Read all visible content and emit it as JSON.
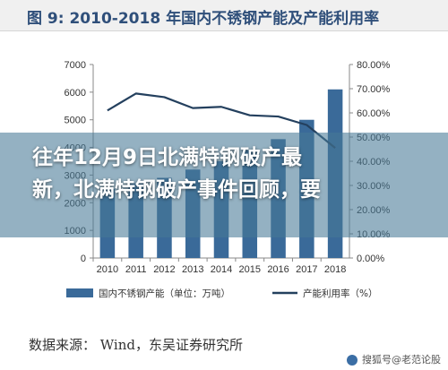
{
  "figure_title": "图 9:  2010-2018 年国内不锈钢产能及产能利用率",
  "chart_data": {
    "type": "bar",
    "categories": [
      "2010",
      "2011",
      "2012",
      "2013",
      "2014",
      "2015",
      "2016",
      "2017",
      "2018"
    ],
    "series": [
      {
        "name": "国内不锈钢产能（单位：万吨）",
        "kind": "bar",
        "axis": "left",
        "values": [
          2500,
          2700,
          2900,
          3200,
          3500,
          3900,
          4300,
          5000,
          6100
        ],
        "color": "#3a6a99"
      },
      {
        "name": "产能利用率（%）",
        "kind": "line",
        "axis": "right",
        "values": [
          0.61,
          0.68,
          0.665,
          0.62,
          0.625,
          0.59,
          0.585,
          0.55,
          0.455
        ],
        "color": "#24405e"
      }
    ],
    "y_left": {
      "min": 0,
      "max": 7000,
      "ticks": [
        "0",
        "1000",
        "2000",
        "3000",
        "4000",
        "5000",
        "6000",
        "7000"
      ]
    },
    "y_right": {
      "min": 0,
      "max": 0.8,
      "ticks": [
        "0.00%",
        "10.00%",
        "20.00%",
        "30.00%",
        "40.00%",
        "50.00%",
        "60.00%",
        "70.00%",
        "80.00%"
      ]
    },
    "grid": false,
    "legend_position": "bottom"
  },
  "overlay": {
    "line1": "往年12月9日北满特钢破产最",
    "line2": "新，北满特钢破产事件回顾，要"
  },
  "source": "数据来源：  Wind，东吴证券研究所",
  "watermark": "搜狐号@老范论股"
}
